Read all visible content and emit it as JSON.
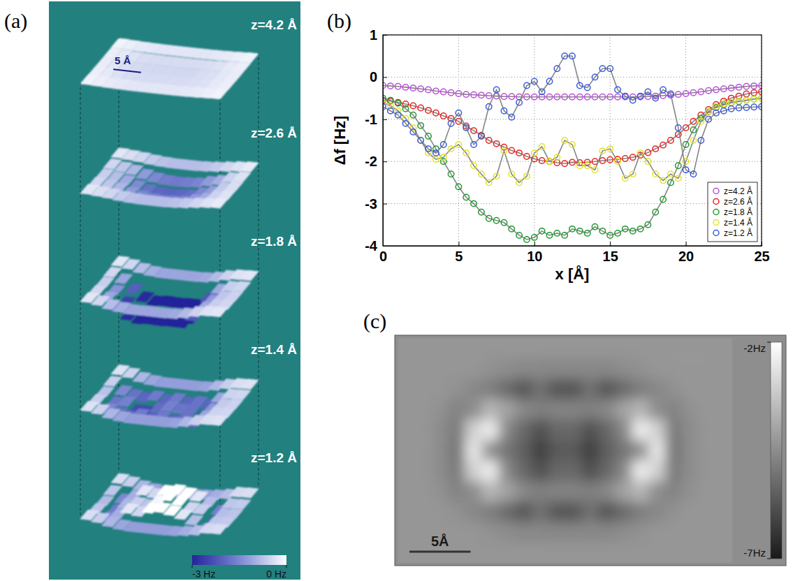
{
  "chart_data": [
    {
      "type": "surface",
      "panel": "(a)",
      "surfaces": [
        {
          "name": "z=4.2 Å",
          "values": [
            [
              -0.15,
              -0.2,
              -0.25,
              -0.28,
              -0.3,
              -0.3,
              -0.3,
              -0.3,
              -0.3,
              -0.28,
              -0.25,
              -0.2,
              -0.15
            ],
            [
              -0.2,
              -0.27,
              -0.35,
              -0.4,
              -0.42,
              -0.43,
              -0.43,
              -0.43,
              -0.42,
              -0.4,
              -0.35,
              -0.27,
              -0.2
            ],
            [
              -0.22,
              -0.3,
              -0.39,
              -0.44,
              -0.46,
              -0.47,
              -0.47,
              -0.47,
              -0.47,
              -0.43,
              -0.38,
              -0.29,
              -0.22
            ],
            [
              -0.2,
              -0.27,
              -0.35,
              -0.4,
              -0.42,
              -0.43,
              -0.43,
              -0.43,
              -0.42,
              -0.4,
              -0.35,
              -0.27,
              -0.2
            ],
            [
              -0.15,
              -0.2,
              -0.25,
              -0.28,
              -0.3,
              -0.3,
              -0.3,
              -0.3,
              -0.3,
              -0.28,
              -0.25,
              -0.2,
              -0.15
            ]
          ]
        },
        {
          "name": "z=2.6 Å",
          "values": [
            [
              -0.3,
              -0.4,
              -0.5,
              -0.65,
              -0.75,
              -0.8,
              -0.8,
              -0.8,
              -0.75,
              -0.65,
              -0.5,
              -0.35,
              -0.25
            ],
            [
              -0.5,
              -0.7,
              -0.9,
              -1.25,
              -1.5,
              -1.65,
              -1.7,
              -1.65,
              -1.55,
              -1.25,
              -1.0,
              -0.55,
              -0.35
            ],
            [
              -0.6,
              -0.8,
              -1.05,
              -1.47,
              -1.8,
              -1.98,
              -2.03,
              -1.96,
              -1.87,
              -1.5,
              -1.2,
              -0.65,
              -0.4
            ],
            [
              -0.5,
              -0.7,
              -0.9,
              -1.25,
              -1.5,
              -1.65,
              -1.7,
              -1.65,
              -1.55,
              -1.25,
              -1.0,
              -0.55,
              -0.35
            ],
            [
              -0.3,
              -0.4,
              -0.5,
              -0.65,
              -0.75,
              -0.8,
              -0.8,
              -0.8,
              -0.75,
              -0.65,
              -0.5,
              -0.35,
              -0.25
            ]
          ]
        },
        {
          "name": "z=1.8 Å",
          "values": [
            [
              -0.3,
              -0.5,
              -0.8,
              -1.0,
              -1.1,
              -1.1,
              -1.1,
              -1.1,
              -1.05,
              -0.85,
              -0.55,
              -0.35,
              -0.3
            ],
            [
              -0.5,
              -1.1,
              -2.1,
              -2.9,
              -3.2,
              -3.1,
              -3.15,
              -3.1,
              -3.1,
              -2.2,
              -1.05,
              -0.6,
              -0.5
            ],
            [
              -0.6,
              -1.35,
              -2.55,
              -3.35,
              -3.75,
              -3.7,
              -3.65,
              -3.65,
              -3.65,
              -2.55,
              -1.25,
              -0.7,
              -0.55
            ],
            [
              -0.5,
              -1.1,
              -2.1,
              -2.9,
              -3.2,
              -3.1,
              -3.15,
              -3.1,
              -3.1,
              -2.2,
              -1.05,
              -0.6,
              -0.5
            ],
            [
              -0.3,
              -0.5,
              -0.8,
              -1.0,
              -1.1,
              -1.1,
              -1.1,
              -1.1,
              -1.05,
              -0.85,
              -0.55,
              -0.35,
              -0.3
            ]
          ]
        },
        {
          "name": "z=1.4 Å",
          "values": [
            [
              -0.35,
              -0.55,
              -0.9,
              -1.1,
              -1.2,
              -1.2,
              -1.2,
              -1.2,
              -1.15,
              -0.9,
              -0.6,
              -0.4,
              -0.35
            ],
            [
              -0.6,
              -1.5,
              -1.8,
              -2.0,
              -1.7,
              -2.0,
              -1.7,
              -2.0,
              -1.8,
              -2.0,
              -1.1,
              -0.55,
              -0.5
            ],
            [
              -0.75,
              -1.75,
              -1.6,
              -2.4,
              -2.4,
              -1.9,
              -1.6,
              -1.75,
              -1.8,
              -2.35,
              -1.3,
              -0.65,
              -0.55
            ],
            [
              -0.6,
              -1.5,
              -1.8,
              -2.0,
              -1.7,
              -2.0,
              -1.7,
              -2.0,
              -1.8,
              -2.0,
              -1.1,
              -0.55,
              -0.5
            ],
            [
              -0.35,
              -0.55,
              -0.9,
              -1.1,
              -1.2,
              -1.2,
              -1.2,
              -1.2,
              -1.15,
              -0.9,
              -0.6,
              -0.4,
              -0.35
            ]
          ]
        },
        {
          "name": "z=1.2 Å",
          "values": [
            [
              -0.4,
              -0.6,
              -0.9,
              -1.1,
              -1.2,
              -1.2,
              -1.2,
              -1.2,
              -1.15,
              -1.0,
              -0.8,
              -0.45,
              -0.4
            ],
            [
              -0.7,
              -1.5,
              -1.0,
              -0.3,
              -0.5,
              0.0,
              0.2,
              0.0,
              -0.3,
              -0.8,
              -1.6,
              -0.7,
              -0.65
            ],
            [
              -0.85,
              -1.7,
              -0.9,
              -0.6,
              -0.7,
              -0.1,
              0.5,
              0.1,
              -0.5,
              -0.6,
              -2.0,
              -0.8,
              -0.72
            ],
            [
              -0.7,
              -1.5,
              -1.0,
              -0.3,
              -0.5,
              0.0,
              0.2,
              0.0,
              -0.3,
              -0.8,
              -1.6,
              -0.7,
              -0.65
            ],
            [
              -0.4,
              -0.6,
              -0.9,
              -1.1,
              -1.2,
              -1.2,
              -1.2,
              -1.2,
              -1.15,
              -1.0,
              -0.8,
              -0.45,
              -0.4
            ]
          ]
        }
      ],
      "colorbar": {
        "range": [
          -3,
          0
        ],
        "ticks": [
          {
            "value": -3,
            "label": "-3 Hz"
          },
          {
            "value": 0,
            "label": "0 Hz"
          }
        ]
      },
      "scale_bar": {
        "value": 5,
        "label": "5 Å"
      }
    },
    {
      "type": "line",
      "panel": "(b)",
      "x_label": "x [Å]",
      "y_label": "Δf [Hz]",
      "x": [
        0,
        0.5,
        1,
        1.5,
        2,
        2.5,
        3,
        3.5,
        4,
        4.5,
        5,
        5.5,
        6,
        6.5,
        7,
        7.5,
        8,
        8.5,
        9,
        9.5,
        10,
        10.5,
        11,
        11.5,
        12,
        12.5,
        13,
        13.5,
        14,
        14.5,
        15,
        15.5,
        16,
        16.5,
        17,
        17.5,
        18,
        18.5,
        19,
        19.5,
        20,
        20.5,
        21,
        21.5,
        22,
        22.5,
        23,
        23.5,
        24,
        24.5,
        25
      ],
      "series": [
        {
          "name": "z=4.2 Å",
          "color": "#b94fd8",
          "marker": "circle",
          "line_style": "solid",
          "values": [
            -0.2,
            -0.21,
            -0.22,
            -0.24,
            -0.26,
            -0.28,
            -0.3,
            -0.33,
            -0.35,
            -0.37,
            -0.39,
            -0.41,
            -0.42,
            -0.43,
            -0.44,
            -0.45,
            -0.46,
            -0.46,
            -0.47,
            -0.47,
            -0.47,
            -0.47,
            -0.47,
            -0.47,
            -0.47,
            -0.47,
            -0.47,
            -0.47,
            -0.47,
            -0.47,
            -0.47,
            -0.47,
            -0.47,
            -0.47,
            -0.47,
            -0.46,
            -0.45,
            -0.44,
            -0.43,
            -0.41,
            -0.39,
            -0.37,
            -0.35,
            -0.32,
            -0.3,
            -0.28,
            -0.26,
            -0.24,
            -0.22,
            -0.21,
            -0.2
          ]
        },
        {
          "name": "z=2.6 Å",
          "color": "#e8231f",
          "marker": "circle",
          "line_style": "solid",
          "values": [
            -0.55,
            -0.57,
            -0.6,
            -0.64,
            -0.68,
            -0.73,
            -0.79,
            -0.85,
            -0.92,
            -0.98,
            -1.05,
            -1.16,
            -1.27,
            -1.38,
            -1.5,
            -1.58,
            -1.66,
            -1.74,
            -1.8,
            -1.88,
            -1.94,
            -1.98,
            -2.0,
            -2.03,
            -2.05,
            -2.02,
            -2.03,
            -2.02,
            -2.0,
            -1.98,
            -1.96,
            -1.95,
            -1.93,
            -1.9,
            -1.85,
            -1.79,
            -1.7,
            -1.61,
            -1.5,
            -1.36,
            -1.2,
            -1.05,
            -0.9,
            -0.77,
            -0.65,
            -0.57,
            -0.5,
            -0.45,
            -0.4,
            -0.37,
            -0.35
          ]
        },
        {
          "name": "z=1.8 Å",
          "color": "#1f9a2e",
          "marker": "circle",
          "line_style": "solid",
          "values": [
            -0.5,
            -0.55,
            -0.62,
            -0.75,
            -0.9,
            -1.15,
            -1.4,
            -1.7,
            -2.0,
            -2.3,
            -2.6,
            -2.85,
            -3.0,
            -3.2,
            -3.35,
            -3.4,
            -3.45,
            -3.6,
            -3.75,
            -3.85,
            -3.8,
            -3.65,
            -3.75,
            -3.7,
            -3.75,
            -3.6,
            -3.65,
            -3.7,
            -3.55,
            -3.65,
            -3.75,
            -3.7,
            -3.6,
            -3.65,
            -3.6,
            -3.5,
            -3.2,
            -2.9,
            -2.5,
            -2.1,
            -1.6,
            -1.25,
            -0.98,
            -0.82,
            -0.72,
            -0.66,
            -0.61,
            -0.58,
            -0.55,
            -0.52,
            -0.5
          ]
        },
        {
          "name": "z=1.4 Å",
          "color": "#e3e32a",
          "marker": "circle",
          "line_style": "solid",
          "values": [
            -0.6,
            -0.68,
            -0.8,
            -0.98,
            -1.2,
            -1.5,
            -1.8,
            -1.95,
            -1.9,
            -1.7,
            -1.6,
            -1.8,
            -2.1,
            -2.3,
            -2.5,
            -2.35,
            -1.75,
            -2.3,
            -2.5,
            -2.35,
            -1.8,
            -1.65,
            -2.0,
            -1.9,
            -1.5,
            -1.6,
            -2.1,
            -2.1,
            -2.2,
            -1.75,
            -1.7,
            -2.0,
            -2.4,
            -2.3,
            -1.8,
            -2.0,
            -2.3,
            -2.45,
            -2.3,
            -2.4,
            -2.0,
            -1.5,
            -1.05,
            -0.82,
            -0.7,
            -0.64,
            -0.6,
            -0.57,
            -0.55,
            -0.52,
            -0.5
          ]
        },
        {
          "name": "z=1.2 Å",
          "color": "#3a5bd9",
          "marker": "circle",
          "line_style": "solid",
          "values": [
            -0.7,
            -0.8,
            -0.9,
            -1.1,
            -1.3,
            -1.5,
            -1.7,
            -1.8,
            -1.6,
            -1.1,
            -0.85,
            -1.2,
            -1.6,
            -1.4,
            -0.7,
            -0.3,
            -0.8,
            -0.95,
            -0.6,
            -0.2,
            -0.1,
            -0.35,
            -0.1,
            0.2,
            0.5,
            0.5,
            -0.2,
            -0.25,
            0.0,
            0.2,
            0.2,
            -0.3,
            -0.45,
            -0.55,
            -0.45,
            -0.35,
            -0.5,
            -0.3,
            -0.4,
            -1.2,
            -2.2,
            -2.3,
            -1.5,
            -1.0,
            -0.85,
            -0.8,
            -0.75,
            -0.73,
            -0.72,
            -0.71,
            -0.7
          ]
        }
      ],
      "xlim": [
        0,
        25
      ],
      "ylim": [
        -4,
        1
      ],
      "xticks": [
        0,
        5,
        10,
        15,
        20,
        25
      ],
      "yticks": [
        -4,
        -3,
        -2,
        -1,
        0,
        1
      ],
      "grid": true,
      "legend": "lower right"
    },
    {
      "type": "heatmap",
      "panel": "(c)",
      "values": [
        [
          -4.3,
          -4.3,
          -4.3,
          -4.3,
          -4.3,
          -4.3,
          -4.3,
          -4.3,
          -4.3,
          -4.3,
          -4.3,
          -4.3,
          -4.3,
          -4.3,
          -4.3,
          -4.3,
          -4.3,
          -4.3,
          -4.3,
          -4.3
        ],
        [
          -4.3,
          -4.3,
          -4.3,
          -4.3,
          -4.3,
          -4.4,
          -4.5,
          -4.6,
          -4.6,
          -4.6,
          -4.6,
          -4.6,
          -4.6,
          -4.5,
          -4.4,
          -4.3,
          -4.3,
          -4.3,
          -4.3,
          -4.3
        ],
        [
          -4.3,
          -4.3,
          -4.3,
          -4.4,
          -4.6,
          -4.8,
          -5.2,
          -5.7,
          -5.1,
          -5.7,
          -5.7,
          -5.1,
          -5.7,
          -5.2,
          -4.8,
          -4.6,
          -4.4,
          -4.3,
          -4.3,
          -4.3
        ],
        [
          -4.3,
          -4.3,
          -4.4,
          -4.7,
          -4.5,
          -3.6,
          -4.0,
          -4.6,
          -4.8,
          -4.7,
          -4.7,
          -4.8,
          -4.6,
          -4.0,
          -3.6,
          -4.5,
          -4.7,
          -4.4,
          -4.3,
          -4.3
        ],
        [
          -4.3,
          -4.3,
          -4.5,
          -4.9,
          -3.0,
          -2.4,
          -4.6,
          -5.3,
          -5.8,
          -5.3,
          -5.3,
          -5.8,
          -5.3,
          -4.6,
          -2.4,
          -3.0,
          -4.9,
          -4.5,
          -4.3,
          -4.3
        ],
        [
          -4.3,
          -4.3,
          -4.5,
          -5.0,
          -2.5,
          -4.4,
          -5.0,
          -5.5,
          -6.2,
          -5.6,
          -5.6,
          -6.2,
          -5.5,
          -5.0,
          -4.4,
          -2.5,
          -5.0,
          -4.5,
          -4.3,
          -4.3
        ],
        [
          -4.3,
          -4.3,
          -4.5,
          -4.9,
          -3.0,
          -2.4,
          -4.6,
          -5.3,
          -5.8,
          -5.3,
          -5.3,
          -5.8,
          -5.3,
          -4.6,
          -2.4,
          -3.0,
          -4.9,
          -4.5,
          -4.3,
          -4.3
        ],
        [
          -4.3,
          -4.3,
          -4.4,
          -4.7,
          -4.5,
          -3.6,
          -4.0,
          -4.6,
          -4.8,
          -4.7,
          -4.7,
          -4.8,
          -4.6,
          -4.0,
          -3.6,
          -4.5,
          -4.7,
          -4.4,
          -4.3,
          -4.3
        ],
        [
          -4.3,
          -4.3,
          -4.3,
          -4.4,
          -4.6,
          -4.8,
          -5.2,
          -5.7,
          -5.1,
          -5.7,
          -5.7,
          -5.1,
          -5.7,
          -5.2,
          -4.8,
          -4.6,
          -4.4,
          -4.3,
          -4.3,
          -4.3
        ],
        [
          -4.3,
          -4.3,
          -4.3,
          -4.3,
          -4.3,
          -4.4,
          -4.5,
          -4.6,
          -4.6,
          -4.6,
          -4.6,
          -4.6,
          -4.6,
          -4.5,
          -4.4,
          -4.3,
          -4.3,
          -4.3,
          -4.3,
          -4.3
        ],
        [
          -4.3,
          -4.3,
          -4.3,
          -4.3,
          -4.3,
          -4.3,
          -4.3,
          -4.3,
          -4.3,
          -4.3,
          -4.3,
          -4.3,
          -4.3,
          -4.3,
          -4.3,
          -4.3,
          -4.3,
          -4.3,
          -4.3,
          -4.3
        ]
      ],
      "colorbar": {
        "range": [
          -7,
          -2
        ],
        "ticks": [
          {
            "value": -2,
            "label": "-2Hz"
          },
          {
            "value": -7,
            "label": "-7Hz"
          }
        ]
      },
      "scale_bar": {
        "value": 5,
        "label": "5Å"
      }
    }
  ]
}
